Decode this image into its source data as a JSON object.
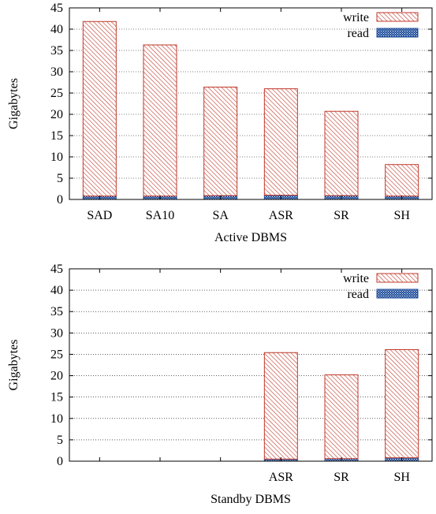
{
  "chart_data": [
    {
      "type": "bar",
      "stacked": true,
      "categories": [
        "SAD",
        "SA10",
        "SA",
        "ASR",
        "SR",
        "SH"
      ],
      "series": [
        {
          "name": "read",
          "values": [
            0.8,
            0.8,
            0.9,
            1.0,
            0.9,
            0.8
          ],
          "color": "#1f4e9a"
        },
        {
          "name": "write",
          "values": [
            41.0,
            35.5,
            25.5,
            25.0,
            19.8,
            7.4
          ],
          "color": "#c0392b"
        }
      ],
      "xlabel": "Active DBMS",
      "ylabel": "Gigabytes",
      "ylim": [
        0,
        45
      ],
      "yticks": [
        0,
        5,
        10,
        15,
        20,
        25,
        30,
        35,
        40,
        45
      ],
      "grid": "horizontal-dotted",
      "legend": "top-right",
      "legend_order": [
        "write",
        "read"
      ]
    },
    {
      "type": "bar",
      "stacked": true,
      "categories": [
        "",
        "",
        "",
        "ASR",
        "SR",
        "SH"
      ],
      "series": [
        {
          "name": "read",
          "values": [
            0,
            0,
            0,
            0.5,
            0.6,
            0.8
          ],
          "color": "#1f4e9a"
        },
        {
          "name": "write",
          "values": [
            0,
            0,
            0,
            24.9,
            19.6,
            25.3
          ],
          "color": "#c0392b"
        }
      ],
      "xlabel": "Standby DBMS",
      "ylabel": "Gigabytes",
      "ylim": [
        0,
        45
      ],
      "yticks": [
        0,
        5,
        10,
        15,
        20,
        25,
        30,
        35,
        40,
        45
      ],
      "grid": "horizontal-dotted",
      "legend": "top-right",
      "legend_order": [
        "write",
        "read"
      ]
    }
  ]
}
